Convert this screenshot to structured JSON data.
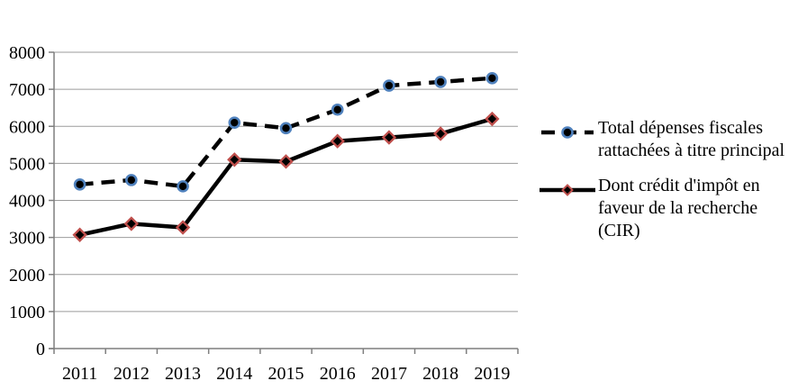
{
  "chart_data": {
    "type": "line",
    "categories": [
      "2011",
      "2012",
      "2013",
      "2014",
      "2015",
      "2016",
      "2017",
      "2018",
      "2019"
    ],
    "series": [
      {
        "name": "Total dépenses fiscales rattachées à titre principal",
        "values": [
          4430,
          4550,
          4380,
          6100,
          5950,
          6450,
          7100,
          7200,
          7300
        ],
        "line_style": "dashed",
        "line_color": "#000000",
        "marker": "circle",
        "marker_fill": "#000000",
        "marker_stroke": "#4F81BD"
      },
      {
        "name": "Dont crédit d'impôt en faveur de la recherche (CIR)",
        "values": [
          3070,
          3370,
          3270,
          5100,
          5050,
          5600,
          5700,
          5800,
          6200
        ],
        "line_style": "solid",
        "line_color": "#000000",
        "marker": "diamond",
        "marker_fill": "#000000",
        "marker_stroke": "#C0504D"
      }
    ],
    "title": "",
    "xlabel": "",
    "ylabel": "",
    "ylim": [
      0,
      8000
    ],
    "ytick_step": 1000,
    "y_ticks": [
      "0",
      "1000",
      "2000",
      "3000",
      "4000",
      "5000",
      "6000",
      "7000",
      "8000"
    ],
    "grid": true,
    "legend_position": "right",
    "colors": {
      "grid": "#9B9B9B",
      "axis": "#7F7F7F"
    }
  }
}
